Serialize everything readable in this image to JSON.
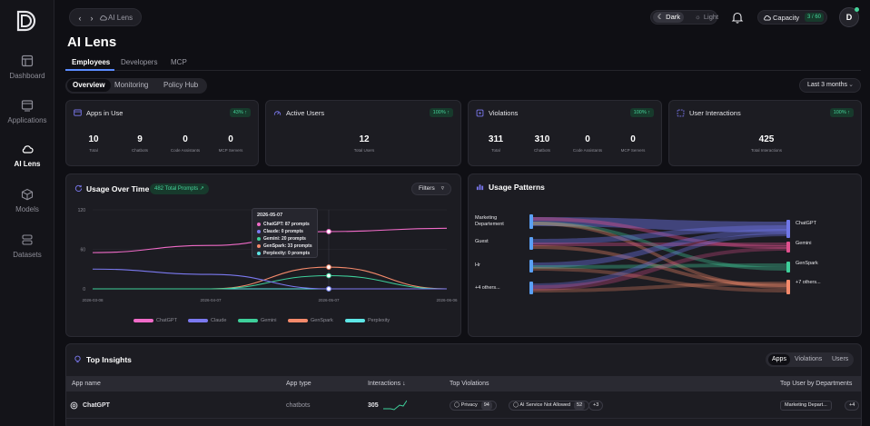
{
  "app": {
    "logo": "D"
  },
  "sidebar": {
    "items": [
      {
        "label": "Dashboard",
        "icon": "layout-icon"
      },
      {
        "label": "Applications",
        "icon": "app-window-icon"
      },
      {
        "label": "AI Lens",
        "icon": "cloud-icon"
      },
      {
        "label": "Models",
        "icon": "cube-icon"
      },
      {
        "label": "Datasets",
        "icon": "database-icon"
      }
    ]
  },
  "topbar": {
    "breadcrumb": "AI Lens",
    "theme_dark": "Dark",
    "theme_light": "Light",
    "capacity_label": "Capacity",
    "capacity_value": "3 / 60",
    "avatar": "D"
  },
  "page": {
    "title": "AI Lens",
    "tabs": [
      "Employees",
      "Developers",
      "MCP"
    ],
    "subtabs": [
      "Overview",
      "Monitoring",
      "Policy Hub"
    ],
    "range": "Last 3 months"
  },
  "cards": [
    {
      "title": "Apps in Use",
      "badge": "43% ↑",
      "stats": [
        {
          "v": "10",
          "l": "Total"
        },
        {
          "v": "9",
          "l": "Chatbots"
        },
        {
          "v": "0",
          "l": "Code Assistants"
        },
        {
          "v": "0",
          "l": "MCP Servers"
        }
      ]
    },
    {
      "title": "Active Users",
      "badge": "100% ↑",
      "stats": [
        {
          "v": "12",
          "l": "Total Users"
        }
      ]
    },
    {
      "title": "Violations",
      "badge": "100% ↑",
      "stats": [
        {
          "v": "311",
          "l": "Total"
        },
        {
          "v": "310",
          "l": "Chatbots"
        },
        {
          "v": "0",
          "l": "Code Assistants"
        },
        {
          "v": "0",
          "l": "MCP Servers"
        }
      ]
    },
    {
      "title": "User Interactions",
      "badge": "100% ↑",
      "stats": [
        {
          "v": "425",
          "l": "Total Interactions"
        }
      ]
    }
  ],
  "usage": {
    "title": "Usage Over Time",
    "total_pill": "482 Total Prompts",
    "filters": "Filters",
    "tooltip": {
      "date": "2026-05-07",
      "rows": [
        "ChatGPT: 87 prompts",
        "Claude: 0 prompts",
        "Gemini: 20 prompts",
        "GenSpark: 33 prompts",
        "Perplexity: 0 prompts"
      ]
    }
  },
  "chart_data": {
    "type": "line",
    "x": [
      "2026-03-08",
      "2026-04-07",
      "2026-05-07",
      "2026-06-06"
    ],
    "yticks": [
      "120",
      "60",
      "0"
    ],
    "ylim": [
      0,
      120
    ],
    "series": [
      {
        "name": "ChatGPT",
        "color": "#f06bc8",
        "values": [
          55,
          66,
          87,
          92
        ]
      },
      {
        "name": "Claude",
        "color": "#7b79f0",
        "values": [
          30,
          22,
          0,
          0
        ]
      },
      {
        "name": "Gemini",
        "color": "#3ecf9a",
        "values": [
          0,
          0,
          20,
          0
        ]
      },
      {
        "name": "GenSpark",
        "color": "#f58a6b",
        "values": [
          0,
          0,
          33,
          0
        ]
      },
      {
        "name": "Perplexity",
        "color": "#5ee6e6",
        "values": [
          0,
          0,
          0,
          0
        ]
      }
    ]
  },
  "patterns": {
    "title": "Usage Patterns",
    "left": [
      "Marketing\nDepartement",
      "Guest",
      "Hr",
      "+4 others..."
    ],
    "right": [
      "ChatGPT",
      "Gemini",
      "GenSpark",
      "+7 others..."
    ]
  },
  "insights": {
    "title": "Top Insights",
    "tabs": [
      "Apps",
      "Violations",
      "Users"
    ],
    "columns": [
      "App name",
      "App type",
      "Interactions ↓",
      "Top Violations",
      "Top User by Departments"
    ],
    "rows": [
      {
        "name": "ChatGPT",
        "type": "chatbots",
        "interactions": "305",
        "v1": "Privacy",
        "v1n": "94",
        "v2": "AI Service Not Allowed",
        "v2n": "52",
        "more": "+3",
        "dept": "Marketing Depart...",
        "dept_more": "+4"
      }
    ]
  }
}
